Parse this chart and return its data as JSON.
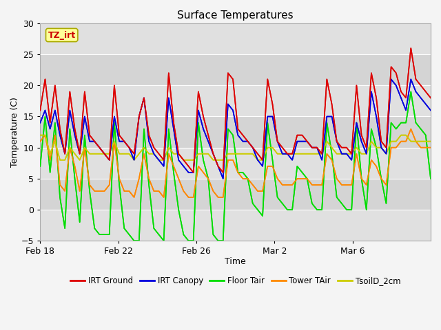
{
  "title": "Surface Temperatures",
  "xlabel": "Time",
  "ylabel": "Temperature (C)",
  "ylim": [
    -5,
    30
  ],
  "background_color": "#f4f4f4",
  "plot_bg_color": "#e8e8e8",
  "annotation_text": "TZ_irt",
  "annotation_color": "#cc0000",
  "annotation_bg": "#ffff99",
  "annotation_border": "#aaaa00",
  "legend_entries": [
    "IRT Ground",
    "IRT Canopy",
    "Floor Tair",
    "Tower TAir",
    "TsoilD_2cm"
  ],
  "line_colors": [
    "#dd0000",
    "#0000dd",
    "#00dd00",
    "#ff8800",
    "#cccc00"
  ],
  "tick_dates": [
    "Feb 18",
    "Feb 22",
    "Feb 26",
    "Mar 2",
    "Mar 6"
  ],
  "tick_positions": [
    0,
    4,
    8,
    12,
    16
  ],
  "yticks": [
    -5,
    0,
    5,
    10,
    15,
    20,
    25,
    30
  ],
  "irt_ground": [
    16,
    21,
    14,
    20,
    13,
    9,
    19,
    13,
    9,
    19,
    12,
    11,
    10,
    9,
    8,
    20,
    12,
    11,
    10,
    9,
    15,
    18,
    12,
    10,
    9,
    8,
    22,
    14,
    9,
    8,
    7,
    6,
    19,
    15,
    12,
    9,
    7,
    6,
    22,
    21,
    13,
    12,
    11,
    10,
    9,
    8,
    21,
    17,
    11,
    10,
    9,
    9,
    12,
    12,
    11,
    10,
    10,
    9,
    21,
    17,
    11,
    10,
    10,
    9,
    20,
    12,
    10,
    22,
    18,
    11,
    10,
    23,
    22,
    19,
    18,
    26,
    21,
    20,
    19,
    18
  ],
  "irt_canopy": [
    14,
    16,
    13,
    16,
    12,
    9,
    16,
    12,
    9,
    15,
    11,
    11,
    10,
    9,
    8,
    15,
    11,
    11,
    10,
    8,
    15,
    18,
    11,
    9,
    8,
    7,
    18,
    13,
    8,
    7,
    6,
    6,
    16,
    13,
    11,
    9,
    7,
    5,
    17,
    16,
    12,
    11,
    11,
    10,
    8,
    7,
    15,
    15,
    11,
    9,
    9,
    8,
    11,
    11,
    11,
    10,
    10,
    8,
    15,
    15,
    11,
    9,
    9,
    8,
    14,
    11,
    9,
    19,
    15,
    10,
    9,
    21,
    20,
    18,
    16,
    21,
    19,
    18,
    17,
    16
  ],
  "floor_tair": [
    7,
    15,
    6,
    14,
    2,
    -3,
    13,
    5,
    -2,
    12,
    3,
    -3,
    -4,
    -4,
    -4,
    14,
    4,
    -3,
    -4,
    -5,
    -5,
    13,
    4,
    -3,
    -4,
    -5,
    13,
    6,
    0,
    -4,
    -5,
    -5,
    14,
    8,
    5,
    -4,
    -5,
    -5,
    13,
    12,
    6,
    6,
    5,
    1,
    0,
    -1,
    14,
    8,
    2,
    1,
    0,
    0,
    7,
    6,
    5,
    1,
    0,
    0,
    14,
    9,
    2,
    1,
    0,
    0,
    14,
    5,
    0,
    13,
    10,
    5,
    1,
    14,
    13,
    14,
    14,
    19,
    14,
    13,
    12,
    5
  ],
  "tower_tair": [
    11,
    12,
    8,
    12,
    4,
    3,
    10,
    7,
    3,
    10,
    4,
    3,
    3,
    3,
    4,
    11,
    5,
    3,
    3,
    2,
    5,
    9,
    5,
    3,
    3,
    2,
    9,
    7,
    5,
    3,
    2,
    2,
    7,
    6,
    5,
    3,
    2,
    2,
    8,
    8,
    6,
    5,
    5,
    4,
    3,
    3,
    7,
    7,
    5,
    4,
    4,
    4,
    5,
    5,
    5,
    4,
    4,
    4,
    9,
    8,
    5,
    4,
    4,
    4,
    9,
    5,
    4,
    8,
    7,
    5,
    4,
    10,
    10,
    11,
    11,
    13,
    11,
    10,
    10,
    10
  ],
  "tsoil": [
    12,
    12,
    9,
    11,
    8,
    8,
    10,
    9,
    8,
    10,
    9,
    9,
    9,
    9,
    9,
    11,
    9,
    9,
    9,
    8,
    9,
    10,
    9,
    9,
    8,
    8,
    10,
    9,
    9,
    8,
    8,
    8,
    9,
    9,
    9,
    8,
    8,
    8,
    9,
    9,
    9,
    9,
    9,
    9,
    8,
    8,
    10,
    10,
    9,
    9,
    9,
    9,
    9,
    9,
    9,
    9,
    9,
    9,
    11,
    10,
    9,
    9,
    9,
    9,
    10,
    9,
    9,
    11,
    10,
    10,
    9,
    11,
    11,
    12,
    12,
    11,
    11,
    11,
    11,
    11
  ]
}
